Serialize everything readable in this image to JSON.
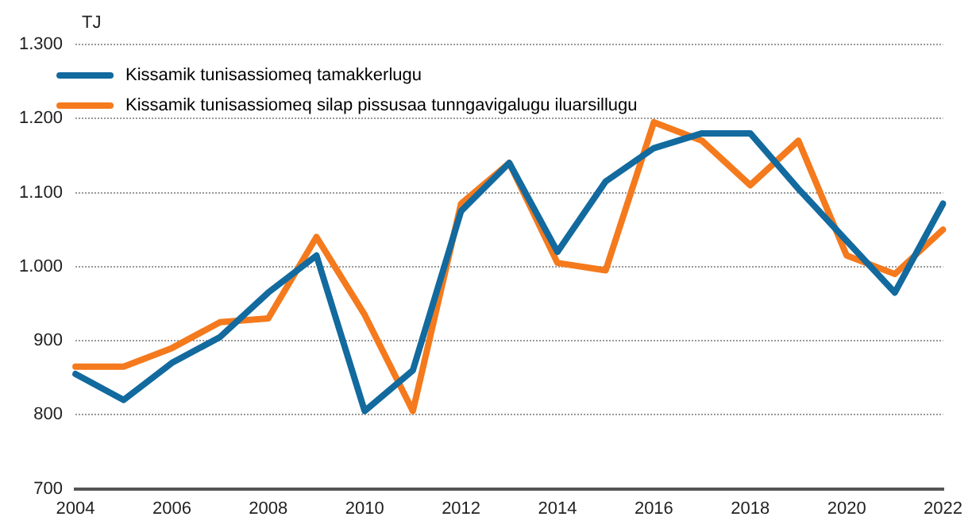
{
  "chart_data": {
    "type": "line",
    "ylabel": "TJ",
    "categories": [
      "2004",
      null,
      "2006",
      null,
      "2008",
      null,
      "2010",
      null,
      "2012",
      null,
      "2014",
      null,
      "2016",
      null,
      "2018",
      null,
      "2020",
      null,
      "2022"
    ],
    "series": [
      {
        "name": "Kissamik tunisassiomeq tamakkerlugu",
        "color": "#126a9e",
        "values": [
          855,
          820,
          870,
          905,
          965,
          1015,
          805,
          860,
          1075,
          1140,
          1020,
          1115,
          1160,
          1180,
          1180,
          1105,
          1035,
          965,
          1085
        ]
      },
      {
        "name": "Kissamik tunisassiomeq silap pissusaa tunngavigalugu iluarsillugu",
        "color": "#f47a1d",
        "values": [
          865,
          865,
          890,
          925,
          930,
          1040,
          935,
          805,
          1085,
          1140,
          1005,
          995,
          1195,
          1170,
          1110,
          1170,
          1015,
          990,
          1050
        ]
      }
    ],
    "ylim": [
      700,
      1300
    ],
    "yticks": [
      {
        "value": 700,
        "label": "700"
      },
      {
        "value": 800,
        "label": "800"
      },
      {
        "value": 900,
        "label": "900"
      },
      {
        "value": 1000,
        "label": "1.000"
      },
      {
        "value": 1100,
        "label": "1.100"
      },
      {
        "value": 1200,
        "label": "1.200"
      },
      {
        "value": 1300,
        "label": "1.300"
      }
    ],
    "grid": "y",
    "legend": "top left",
    "marker": "none",
    "line_style": "solid"
  }
}
